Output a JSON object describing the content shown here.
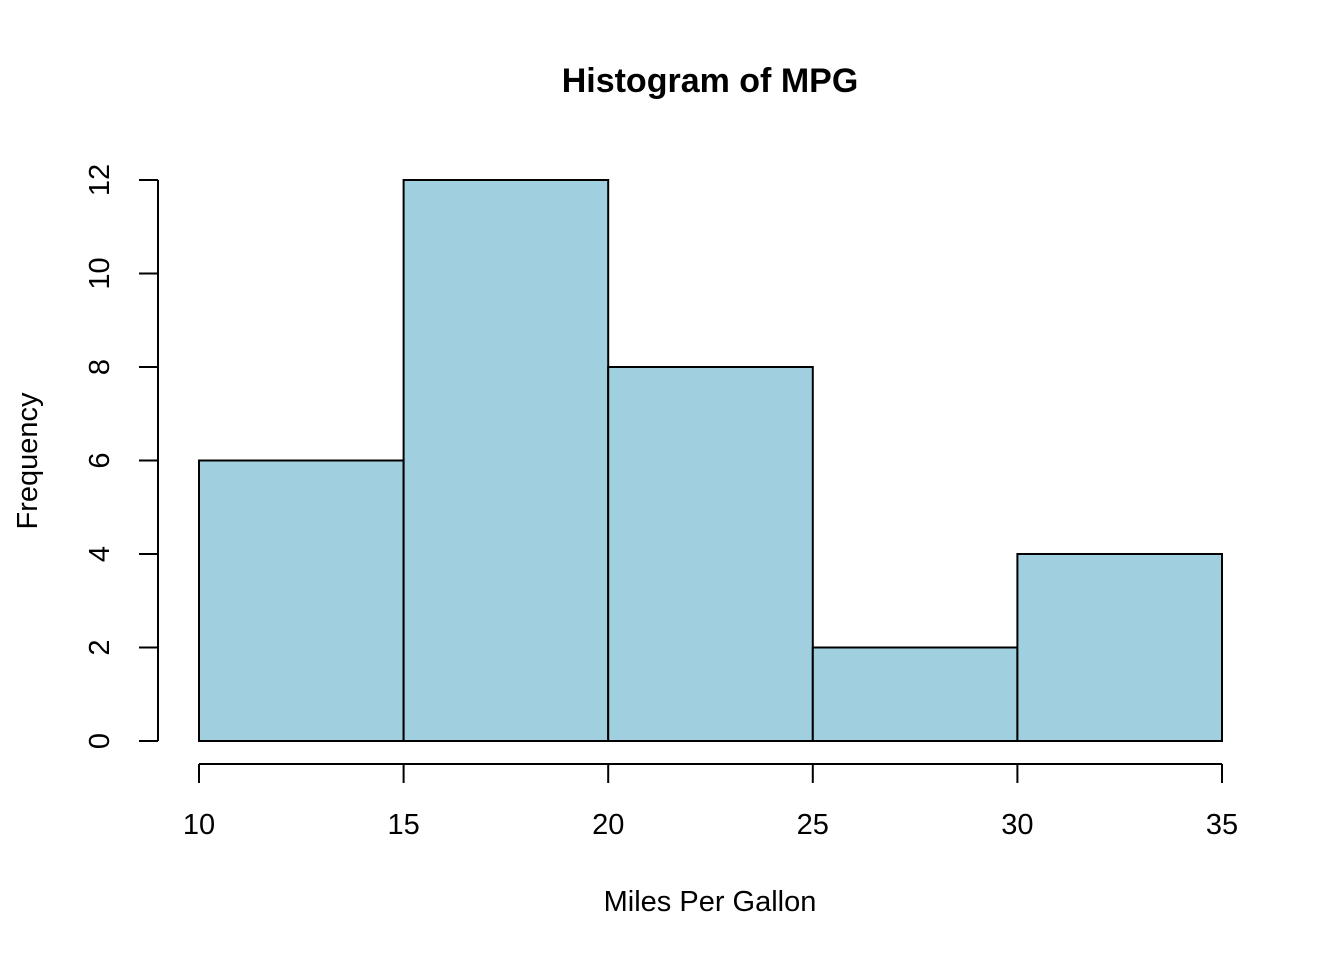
{
  "chart_data": {
    "type": "bar",
    "title": "Histogram of MPG",
    "xlabel": "Miles Per Gallon",
    "ylabel": "Frequency",
    "bins": [
      {
        "start": 10,
        "end": 15,
        "count": 6
      },
      {
        "start": 15,
        "end": 20,
        "count": 12
      },
      {
        "start": 20,
        "end": 25,
        "count": 8
      },
      {
        "start": 25,
        "end": 30,
        "count": 2
      },
      {
        "start": 30,
        "end": 35,
        "count": 4
      }
    ],
    "xlim": [
      10,
      35
    ],
    "ylim": [
      0,
      12
    ],
    "x_ticks": [
      "10",
      "15",
      "20",
      "25",
      "30",
      "35"
    ],
    "y_ticks": [
      "0",
      "2",
      "4",
      "6",
      "8",
      "10",
      "12"
    ],
    "bar_color": "#a0cfe0",
    "grid": false
  }
}
